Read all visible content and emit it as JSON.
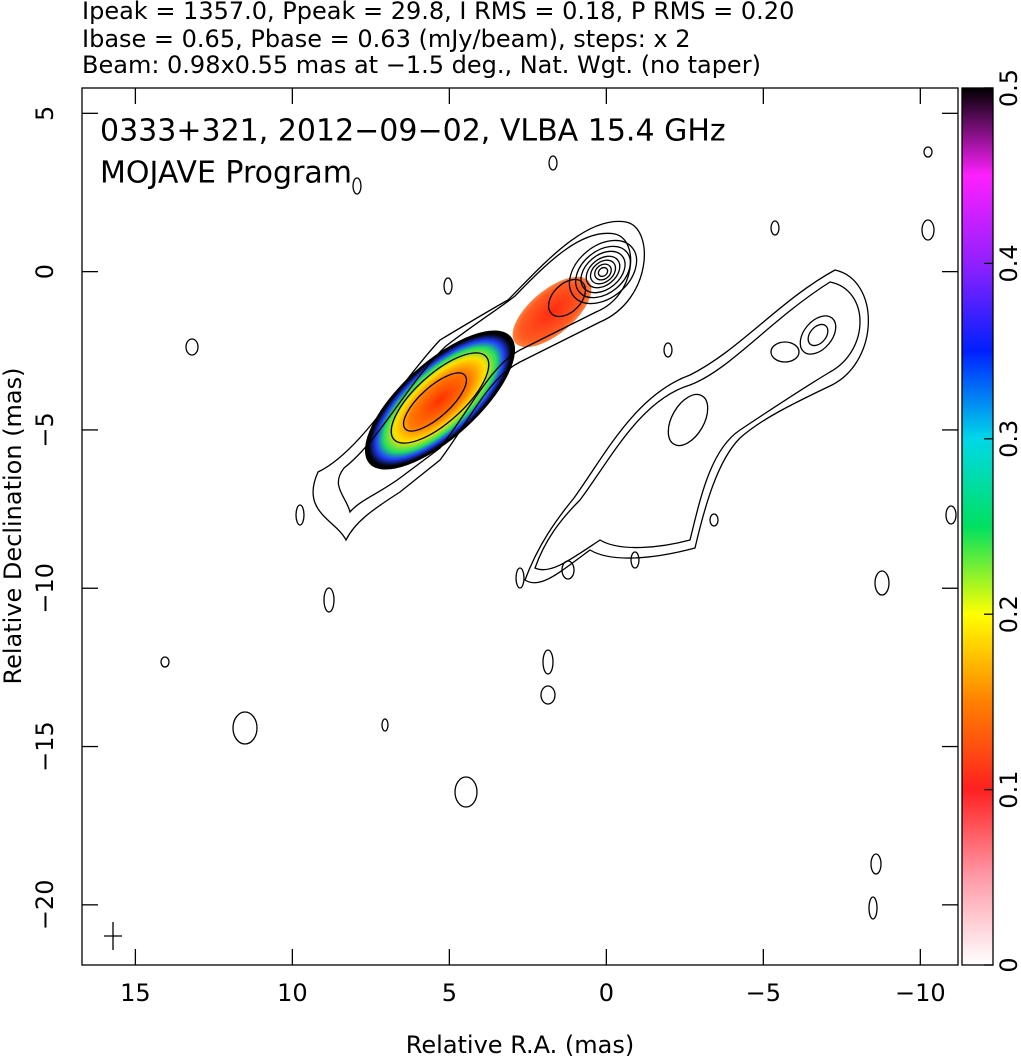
{
  "chart_data": {
    "type": "image",
    "header": [
      "Ipeak = 1357.0, Ppeak = 29.8, I RMS = 0.18, P RMS = 0.20",
      "Ibase = 0.65, Pbase = 0.63 (mJy/beam), steps: x 2",
      "Beam: 0.98x0.55 mas at −1.5 deg., Nat. Wgt. (no taper)"
    ],
    "annotations": [
      "0333+321, 2012−09−02, VLBA 15.4 GHz",
      "MOJAVE Program"
    ],
    "xlabel": "Relative R.A. (mas)",
    "ylabel": "Relative Declination (mas)",
    "xlim": [
      16.7,
      -11.2
    ],
    "ylim": [
      -21.9,
      5.8
    ],
    "xticks": [
      15,
      10,
      5,
      0,
      {
        "value": -5,
        "label": "−5"
      },
      {
        "value": -10,
        "label": "−10"
      }
    ],
    "yticks": [
      5,
      0,
      {
        "value": -5,
        "label": "−5"
      },
      {
        "value": -10,
        "label": "−10"
      },
      {
        "value": -15,
        "label": "−15"
      },
      {
        "value": -20,
        "label": "−20"
      }
    ],
    "colorbar": {
      "lim": [
        0,
        0.5
      ],
      "ticks": [
        0,
        0.1,
        0.2,
        0.3,
        0.4,
        0.5
      ],
      "colors": [
        "#ffffff",
        "#ff9aa8",
        "#ff2020",
        "#ff8000",
        "#ffff00",
        "#00e060",
        "#00d8e8",
        "#0020ff",
        "#9020ff",
        "#ff20ff",
        "#000000"
      ]
    }
  }
}
